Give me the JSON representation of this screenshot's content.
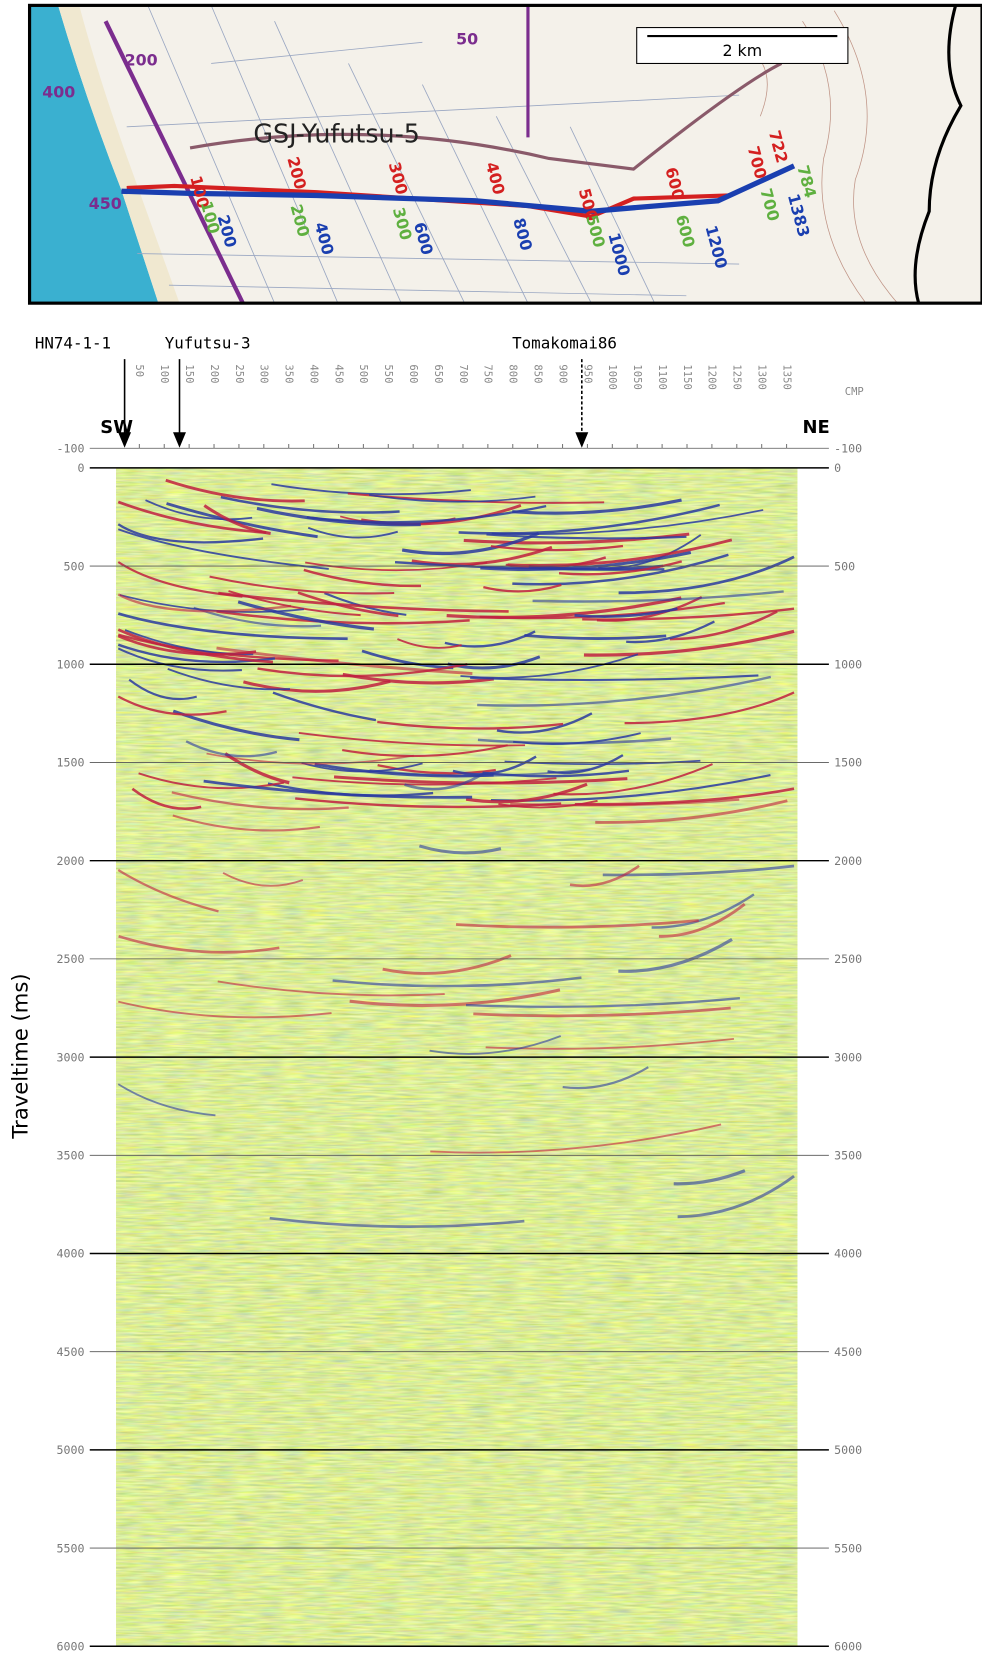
{
  "map": {
    "scale_bar": "2 km",
    "line_name": "GSJ-Yufutsu-5",
    "labels": [
      {
        "text": "400",
        "color": "#7b2d8e"
      },
      {
        "text": "450",
        "color": "#7b2d8e"
      },
      {
        "text": "200",
        "color": "#7b2d8e"
      },
      {
        "text": "50",
        "color": "#7b2d8e"
      },
      {
        "text": "100",
        "color": "#d42020"
      },
      {
        "text": "200",
        "color": "#d42020"
      },
      {
        "text": "300",
        "color": "#d42020"
      },
      {
        "text": "400",
        "color": "#d42020"
      },
      {
        "text": "500",
        "color": "#d42020"
      },
      {
        "text": "600",
        "color": "#d42020"
      },
      {
        "text": "700",
        "color": "#d42020"
      },
      {
        "text": "722",
        "color": "#d42020"
      },
      {
        "text": "200",
        "color": "#1a3fb0"
      },
      {
        "text": "400",
        "color": "#1a3fb0"
      },
      {
        "text": "600",
        "color": "#1a3fb0"
      },
      {
        "text": "800",
        "color": "#1a3fb0"
      },
      {
        "text": "1000",
        "color": "#1a3fb0"
      },
      {
        "text": "1200",
        "color": "#1a3fb0"
      },
      {
        "text": "1383",
        "color": "#1a3fb0"
      },
      {
        "text": "100",
        "color": "#5fb040"
      },
      {
        "text": "200",
        "color": "#5fb040"
      },
      {
        "text": "300",
        "color": "#5fb040"
      },
      {
        "text": "500",
        "color": "#5fb040"
      },
      {
        "text": "600",
        "color": "#5fb040"
      },
      {
        "text": "700",
        "color": "#5fb040"
      },
      {
        "text": "784",
        "color": "#5fb040"
      }
    ]
  },
  "chart_data": {
    "type": "seismic-section",
    "y_label": "Traveltime (ms)",
    "x_label": "CMP",
    "left_end": "SW",
    "right_end": "NE",
    "wells": [
      "HN74-1-1",
      "Yufutsu-3",
      "Tomakomai86"
    ],
    "xlim": [
      0,
      1383
    ],
    "xticks": [
      50,
      100,
      150,
      200,
      250,
      300,
      350,
      400,
      450,
      500,
      550,
      600,
      650,
      700,
      750,
      800,
      850,
      900,
      950,
      1000,
      1050,
      1100,
      1150,
      1200,
      1250,
      1300,
      1350
    ],
    "ylim": [
      -100,
      6000
    ],
    "yticks": [
      -100,
      0,
      500,
      1000,
      1500,
      2000,
      2500,
      3000,
      3500,
      4000,
      4500,
      5000,
      5500,
      6000
    ]
  }
}
